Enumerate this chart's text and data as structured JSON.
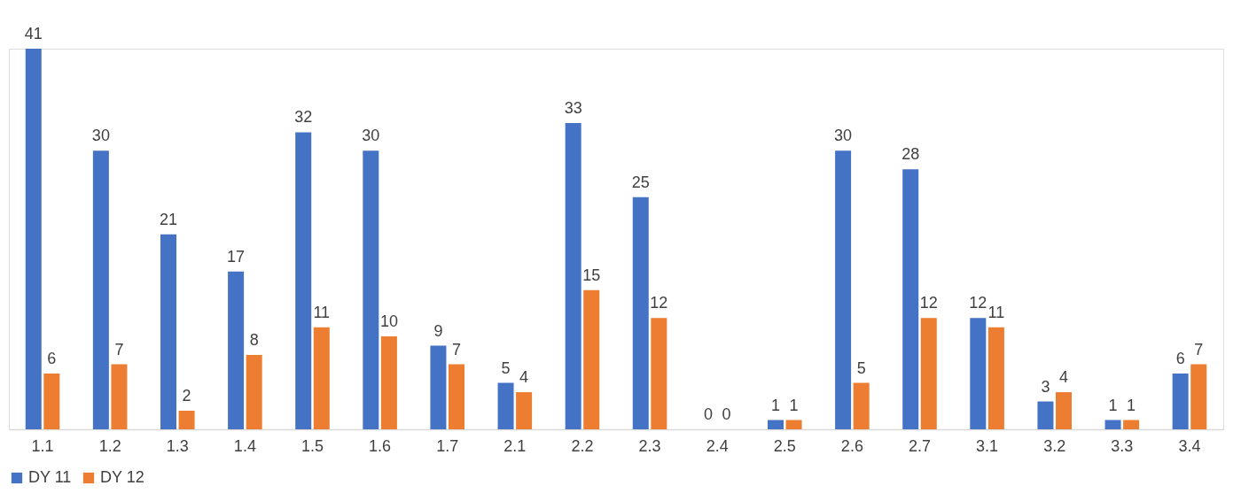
{
  "chart_data": {
    "type": "bar",
    "categories": [
      "1.1",
      "1.2",
      "1.3",
      "1.4",
      "1.5",
      "1.6",
      "1.7",
      "2.1",
      "2.2",
      "2.3",
      "2.4",
      "2.5",
      "2.6",
      "2.7",
      "3.1",
      "3.2",
      "3.3",
      "3.4"
    ],
    "series": [
      {
        "name": "DY 11",
        "color": "#4472c4",
        "values": [
          41,
          30,
          21,
          17,
          32,
          30,
          9,
          5,
          33,
          25,
          0,
          1,
          30,
          28,
          12,
          3,
          1,
          6
        ]
      },
      {
        "name": "DY 12",
        "color": "#ed7d31",
        "values": [
          6,
          7,
          2,
          8,
          11,
          10,
          7,
          4,
          15,
          12,
          0,
          1,
          5,
          12,
          11,
          4,
          1,
          7
        ]
      }
    ],
    "data_labels": true,
    "legend": "bottom",
    "grid": false
  }
}
